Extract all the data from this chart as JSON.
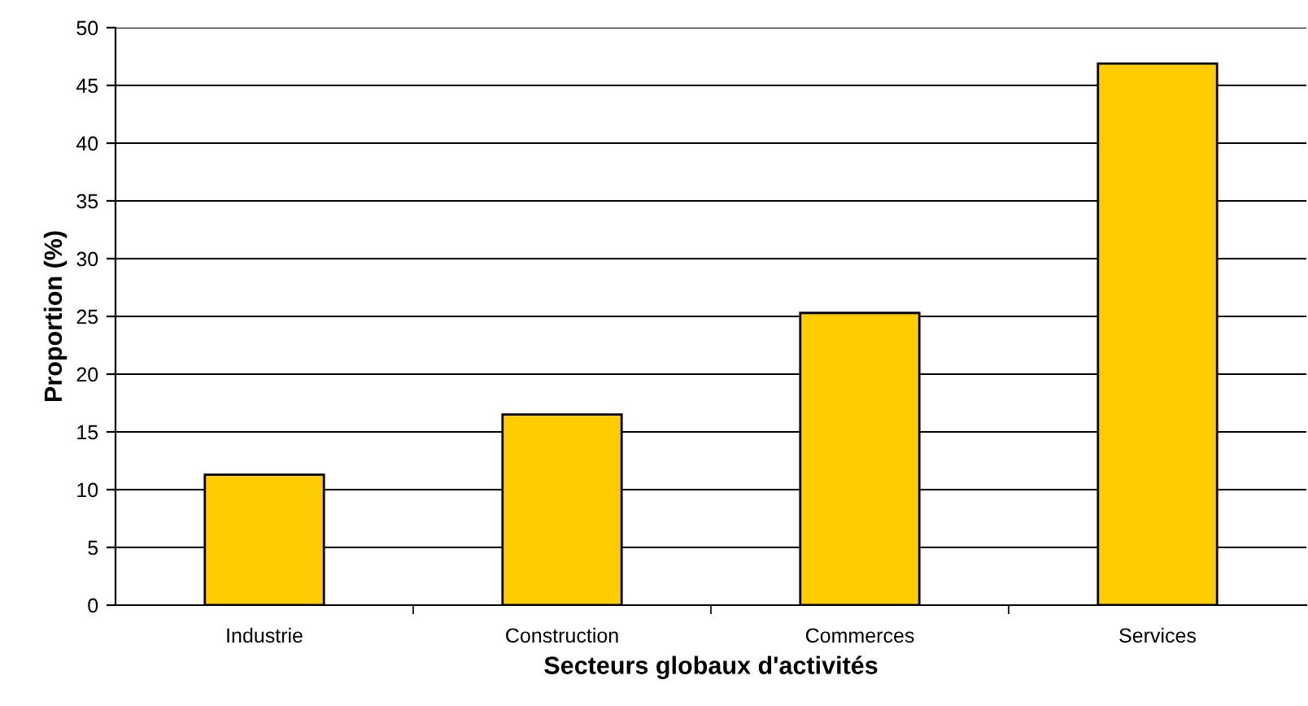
{
  "chart_data": {
    "type": "bar",
    "xlabel": "Secteurs globaux d'activités",
    "ylabel": "Proportion (%)",
    "categories": [
      "Industrie",
      "Construction",
      "Commerces",
      "Services"
    ],
    "values": [
      11.3,
      16.5,
      25.3,
      46.9
    ],
    "color": "#ffcc00",
    "ylim": [
      0,
      50
    ],
    "yticks": [
      0,
      5,
      10,
      15,
      20,
      25,
      30,
      35,
      40,
      45,
      50
    ],
    "grid": "y"
  }
}
